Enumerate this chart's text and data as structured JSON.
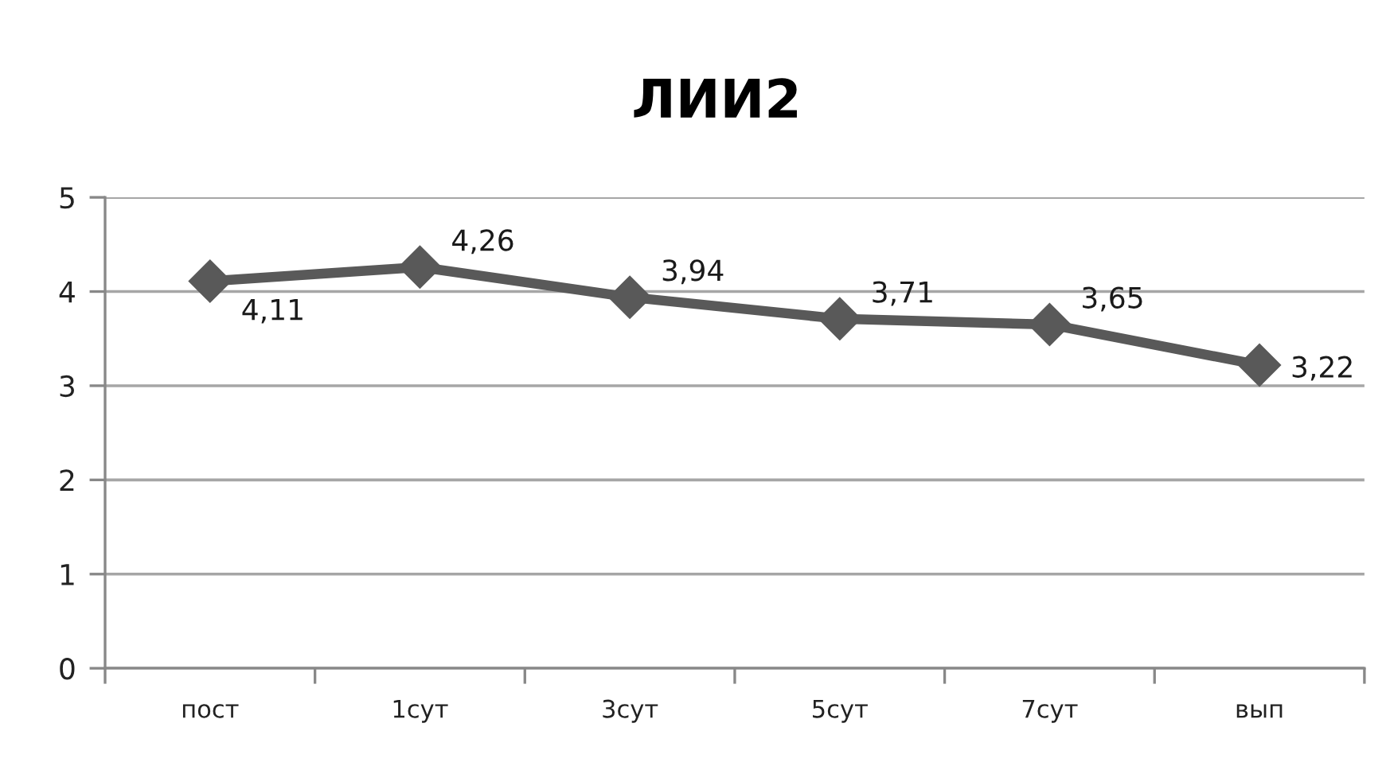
{
  "chart_data": {
    "type": "line",
    "title": "ЛИИ2",
    "categories": [
      "пост",
      "1сут",
      "3сут",
      "5сут",
      "7сут",
      "вып"
    ],
    "series": [
      {
        "color": "#595959",
        "values": [
          4.11,
          4.26,
          3.94,
          3.71,
          3.65,
          3.22
        ],
        "value_labels": [
          "4,11",
          "4,26",
          "3,94",
          "3,71",
          "3,65",
          "3,22"
        ]
      }
    ],
    "ylim": [
      0,
      5
    ],
    "yticks": [
      0,
      1,
      2,
      3,
      4,
      5
    ],
    "grid": "y",
    "marker": "diamond",
    "line_style": "solid"
  }
}
